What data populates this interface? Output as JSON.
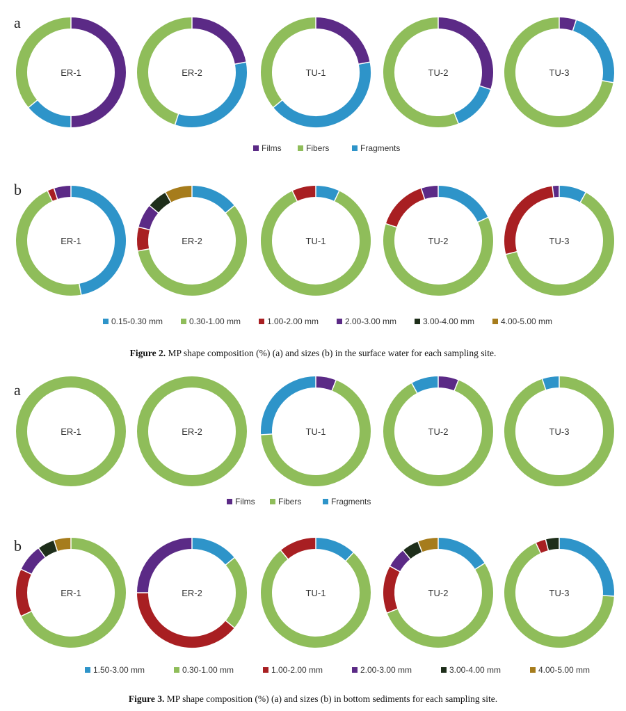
{
  "colors": {
    "Films": "#5b2a86",
    "Fibers": "#8fbd5a",
    "Fragments": "#2e94c9",
    "0.15-0.30 mm": "#2e94c9",
    "1.50-3.00 mm": "#2e94c9",
    "0.30-1.00 mm": "#8fbd5a",
    "1.00-2.00 mm": "#a81f22",
    "2.00-3.00 mm": "#5b2a86",
    "3.00-4.00 mm": "#1e2e1a",
    "4.00-5.00 mm": "#a67c1c"
  },
  "figure2": {
    "caption_label": "Figure 2.",
    "caption_text": "MP shape composition (%) (a) and sizes (b) in the surface water for each sampling site."
  },
  "figure3": {
    "caption_label": "Figure 3.",
    "caption_text": "MP shape composition (%) (a) and sizes (b) in bottom sediments for each sampling site."
  },
  "chart_data": [
    {
      "type": "pie",
      "panel": "a",
      "legend": [
        "Films",
        "Fibers",
        "Fragments"
      ],
      "charts": [
        {
          "label": "ER-1",
          "slices": {
            "Films": 50,
            "Fibers": 36,
            "Fragments": 14
          }
        },
        {
          "label": "ER-2",
          "slices": {
            "Films": 22,
            "Fibers": 45,
            "Fragments": 33
          }
        },
        {
          "label": "TU-1",
          "slices": {
            "Films": 22,
            "Fibers": 36,
            "Fragments": 42
          }
        },
        {
          "label": "TU-2",
          "slices": {
            "Films": 30,
            "Fibers": 56,
            "Fragments": 14
          }
        },
        {
          "label": "TU-3",
          "slices": {
            "Films": 5,
            "Fibers": 72,
            "Fragments": 23
          }
        }
      ]
    },
    {
      "type": "pie",
      "panel": "b",
      "legend": [
        "0.15-0.30 mm",
        "0.30-1.00 mm",
        "1.00-2.00 mm",
        "2.00-3.00 mm",
        "3.00-4.00 mm",
        "4.00-5.00 mm"
      ],
      "charts": [
        {
          "label": "ER-1",
          "slices": {
            "0.15-0.30 mm": 47,
            "0.30-1.00 mm": 46,
            "1.00-2.00 mm": 2,
            "2.00-3.00 mm": 5
          }
        },
        {
          "label": "ER-2",
          "slices": {
            "0.15-0.30 mm": 14,
            "0.30-1.00 mm": 58,
            "1.00-2.00 mm": 7,
            "2.00-3.00 mm": 7,
            "3.00-4.00 mm": 6,
            "4.00-5.00 mm": 8
          }
        },
        {
          "label": "TU-1",
          "slices": {
            "0.15-0.30 mm": 7,
            "0.30-1.00 mm": 86,
            "1.00-2.00 mm": 7
          }
        },
        {
          "label": "TU-2",
          "slices": {
            "0.15-0.30 mm": 18,
            "0.30-1.00 mm": 62,
            "1.00-2.00 mm": 15,
            "2.00-3.00 mm": 5
          }
        },
        {
          "label": "TU-3",
          "slices": {
            "0.15-0.30 mm": 8,
            "0.30-1.00 mm": 63,
            "1.00-2.00 mm": 27,
            "2.00-3.00 mm": 2
          }
        }
      ]
    },
    {
      "type": "pie",
      "panel": "a",
      "legend": [
        "Films",
        "Fibers",
        "Fragments"
      ],
      "charts": [
        {
          "label": "ER-1",
          "slices": {
            "Fibers": 100
          }
        },
        {
          "label": "ER-2",
          "slices": {
            "Fibers": 100
          }
        },
        {
          "label": "TU-1",
          "slices": {
            "Films": 6,
            "Fibers": 68,
            "Fragments": 26
          }
        },
        {
          "label": "TU-2",
          "slices": {
            "Films": 6,
            "Fibers": 86,
            "Fragments": 8
          }
        },
        {
          "label": "TU-3",
          "slices": {
            "Fibers": 95,
            "Fragments": 5
          }
        }
      ]
    },
    {
      "type": "pie",
      "panel": "b",
      "legend": [
        "1.50-3.00 mm",
        "0.30-1.00 mm",
        "1.00-2.00 mm",
        "2.00-3.00 mm",
        "3.00-4.00 mm",
        "4.00-5.00 mm"
      ],
      "charts": [
        {
          "label": "ER-1",
          "slices": {
            "0.30-1.00 mm": 68,
            "1.00-2.00 mm": 14,
            "2.00-3.00 mm": 8,
            "3.00-4.00 mm": 5,
            "4.00-5.00 mm": 5
          }
        },
        {
          "label": "ER-2",
          "slices": {
            "1.50-3.00 mm": 14,
            "0.30-1.00 mm": 22,
            "1.00-2.00 mm": 39,
            "2.00-3.00 mm": 25
          }
        },
        {
          "label": "TU-1",
          "slices": {
            "1.50-3.00 mm": 12,
            "0.30-1.00 mm": 77,
            "1.00-2.00 mm": 11
          }
        },
        {
          "label": "TU-2",
          "slices": {
            "1.50-3.00 mm": 16,
            "0.30-1.00 mm": 53,
            "1.00-2.00 mm": 14,
            "2.00-3.00 mm": 6,
            "3.00-4.00 mm": 5,
            "4.00-5.00 mm": 6
          }
        },
        {
          "label": "TU-3",
          "slices": {
            "1.50-3.00 mm": 26,
            "0.30-1.00 mm": 67,
            "1.00-2.00 mm": 3,
            "3.00-4.00 mm": 4
          }
        }
      ]
    }
  ]
}
